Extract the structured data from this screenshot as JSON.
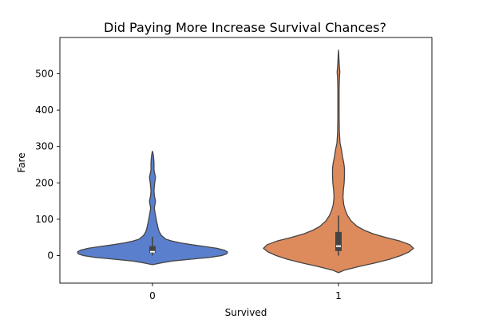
{
  "chart_data": {
    "type": "violin",
    "title": "Did Paying More Increase Survival Chances?",
    "xlabel": "Survived",
    "ylabel": "Fare",
    "categories": [
      "0",
      "1"
    ],
    "ylim": [
      -78,
      590
    ],
    "yticks": [
      0,
      100,
      200,
      300,
      400,
      500
    ],
    "grid": false,
    "legend": "none",
    "violins": [
      {
        "category": "0",
        "color": "#5a7fcd",
        "box": {
          "q1": 7.9,
          "median": 10.5,
          "q3": 26,
          "whisker_low": 0,
          "whisker_high": 52
        },
        "profile": [
          [
            -25,
            0.0
          ],
          [
            -20,
            0.12
          ],
          [
            -15,
            0.26
          ],
          [
            -10,
            0.5
          ],
          [
            -5,
            0.76
          ],
          [
            0,
            0.92
          ],
          [
            5,
            0.99
          ],
          [
            10,
            1.0
          ],
          [
            15,
            0.96
          ],
          [
            20,
            0.86
          ],
          [
            25,
            0.7
          ],
          [
            30,
            0.52
          ],
          [
            35,
            0.37
          ],
          [
            40,
            0.26
          ],
          [
            45,
            0.18
          ],
          [
            55,
            0.12
          ],
          [
            65,
            0.09
          ],
          [
            75,
            0.075
          ],
          [
            90,
            0.06
          ],
          [
            110,
            0.04
          ],
          [
            130,
            0.025
          ],
          [
            150,
            0.04
          ],
          [
            165,
            0.025
          ],
          [
            180,
            0.02
          ],
          [
            200,
            0.03
          ],
          [
            215,
            0.04
          ],
          [
            235,
            0.02
          ],
          [
            255,
            0.02
          ],
          [
            270,
            0.015
          ],
          [
            280,
            0.008
          ],
          [
            287,
            0.0
          ]
        ]
      },
      {
        "category": "1",
        "color": "#dd8b5d",
        "box": {
          "q1": 12.5,
          "median": 26,
          "q3": 65,
          "whisker_low": 0,
          "whisker_high": 110
        },
        "profile": [
          [
            -47,
            0.0
          ],
          [
            -40,
            0.08
          ],
          [
            -30,
            0.27
          ],
          [
            -20,
            0.49
          ],
          [
            -10,
            0.68
          ],
          [
            0,
            0.83
          ],
          [
            10,
            0.94
          ],
          [
            20,
            1.0
          ],
          [
            30,
            0.95
          ],
          [
            40,
            0.82
          ],
          [
            50,
            0.63
          ],
          [
            60,
            0.46
          ],
          [
            70,
            0.34
          ],
          [
            80,
            0.25
          ],
          [
            95,
            0.17
          ],
          [
            110,
            0.12
          ],
          [
            125,
            0.09
          ],
          [
            140,
            0.07
          ],
          [
            160,
            0.06
          ],
          [
            180,
            0.065
          ],
          [
            200,
            0.075
          ],
          [
            220,
            0.08
          ],
          [
            240,
            0.08
          ],
          [
            255,
            0.07
          ],
          [
            270,
            0.055
          ],
          [
            290,
            0.04
          ],
          [
            310,
            0.02
          ],
          [
            340,
            0.012
          ],
          [
            380,
            0.008
          ],
          [
            420,
            0.008
          ],
          [
            460,
            0.008
          ],
          [
            490,
            0.013
          ],
          [
            505,
            0.018
          ],
          [
            520,
            0.012
          ],
          [
            540,
            0.006
          ],
          [
            555,
            0.003
          ],
          [
            565,
            0.0
          ]
        ]
      }
    ]
  }
}
